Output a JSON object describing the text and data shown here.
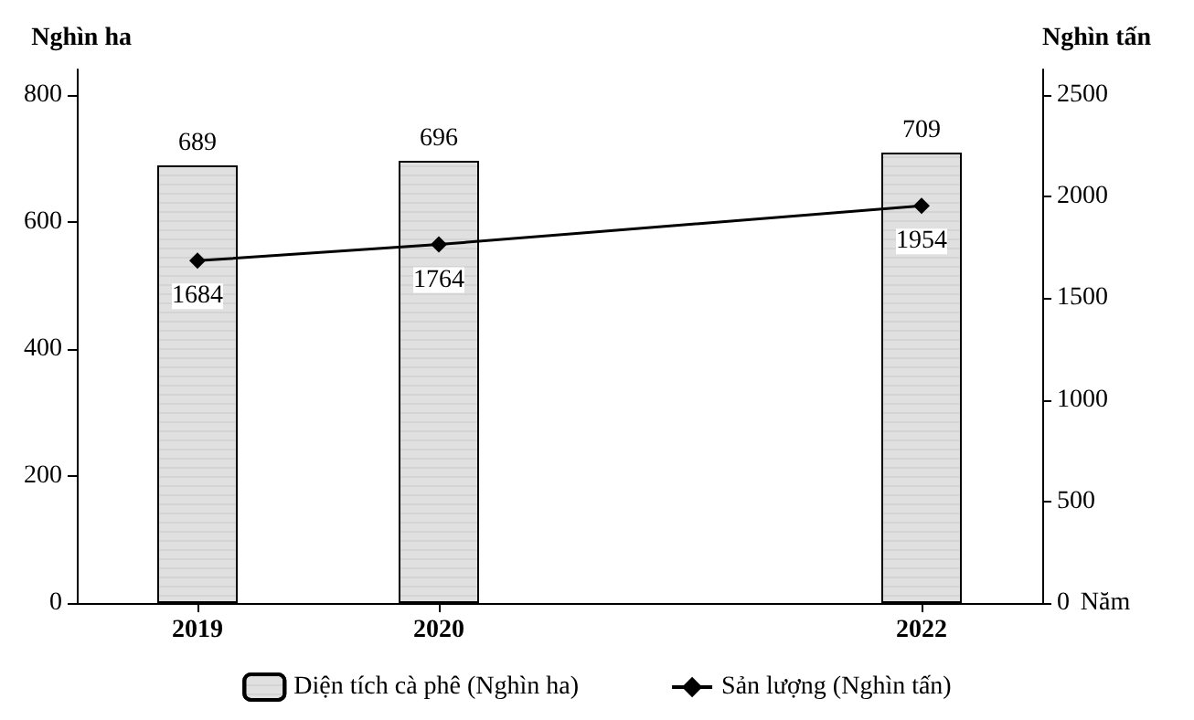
{
  "chart_data": {
    "type": "bar",
    "xlabel": "Năm",
    "ylabel": "Nghìn ha",
    "y2label": "Nghìn tấn",
    "x": [
      2019,
      2020,
      2022
    ],
    "xlim": [
      2018.5,
      2022.5
    ],
    "xticks": [
      2019,
      2020,
      2022
    ],
    "ylim": [
      0,
      840
    ],
    "yticks": [
      0,
      200,
      400,
      600,
      800
    ],
    "y2lim": [
      0,
      2625
    ],
    "y2ticks": [
      0,
      500,
      1000,
      1500,
      2000,
      2500
    ],
    "series": [
      {
        "name": "Diện tích cà phê (Nghìn ha)",
        "color": "#e0e0e0",
        "values": [
          689,
          696,
          709
        ]
      },
      {
        "name": "Sản lượng (Nghìn tấn)",
        "type": "line",
        "axis": "y2",
        "color": "#000000",
        "values": [
          1684,
          1764,
          1954
        ]
      }
    ],
    "data_labels": true,
    "marker": "diamond",
    "legend": "bottom",
    "grid": false
  }
}
